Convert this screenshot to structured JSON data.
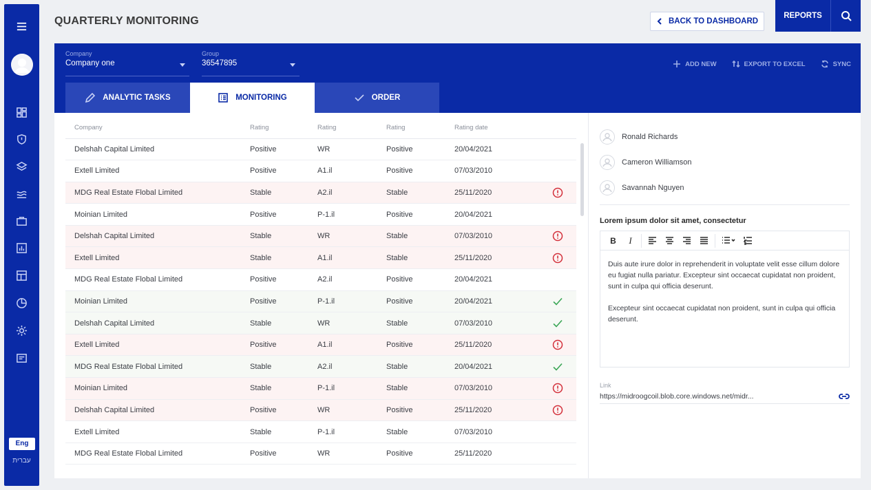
{
  "header": {
    "title": "QUARTERLY MONITORING",
    "back_label": "BACK TO DASHBOARD",
    "reports_label": "REPORTS"
  },
  "sidebar": {
    "icons": [
      "menu-icon",
      "dashboard-icon",
      "shield-icon",
      "layers-icon",
      "waves-icon",
      "briefcase-icon",
      "bar-chart-icon",
      "layout-icon",
      "pie-chart-icon",
      "settings-icon",
      "card-icon"
    ],
    "lang_primary": "Eng",
    "lang_secondary": "עברית"
  },
  "filters": {
    "company_label": "Company",
    "company_value": "Company one",
    "group_label": "Group",
    "group_value": "36547895"
  },
  "actions": {
    "add_new": "ADD NEW",
    "export": "EXPORT TO EXCEL",
    "sync": "SYNC"
  },
  "tabs": [
    {
      "label": "ANALYTIC TASKS"
    },
    {
      "label": "MONITORING"
    },
    {
      "label": "ORDER"
    }
  ],
  "table": {
    "columns": [
      "Company",
      "Rating",
      "Rating",
      "Rating",
      "Rating date"
    ],
    "rows": [
      {
        "company": "Delshah Capital Limited",
        "r1": "Positive",
        "r2": "WR",
        "r3": "Positive",
        "date": "20/04/2021",
        "status": "none"
      },
      {
        "company": "Extell Limited",
        "r1": "Positive",
        "r2": "A1.il",
        "r3": "Positive",
        "date": "07/03/2010",
        "status": "none"
      },
      {
        "company": "MDG Real Estate Flobal Limited",
        "r1": "Stable",
        "r2": "A2.il",
        "r3": "Stable",
        "date": "25/11/2020",
        "status": "warning"
      },
      {
        "company": "Moinian Limited",
        "r1": "Positive",
        "r2": "P-1.il",
        "r3": "Positive",
        "date": "20/04/2021",
        "status": "none"
      },
      {
        "company": "Delshah Capital Limited",
        "r1": "Stable",
        "r2": "WR",
        "r3": "Stable",
        "date": "07/03/2010",
        "status": "warning"
      },
      {
        "company": "Extell Limited",
        "r1": "Stable",
        "r2": "A1.il",
        "r3": "Stable",
        "date": "25/11/2020",
        "status": "warning"
      },
      {
        "company": "MDG Real Estate Flobal Limited",
        "r1": "Positive",
        "r2": "A2.il",
        "r3": "Positive",
        "date": "20/04/2021",
        "status": "none"
      },
      {
        "company": "Moinian Limited",
        "r1": "Positive",
        "r2": "P-1.il",
        "r3": "Positive",
        "date": "20/04/2021",
        "status": "ok"
      },
      {
        "company": "Delshah Capital Limited",
        "r1": "Stable",
        "r2": "WR",
        "r3": "Stable",
        "date": "07/03/2010",
        "status": "ok"
      },
      {
        "company": "Extell Limited",
        "r1": "Positive",
        "r2": "A1.il",
        "r3": "Positive",
        "date": "25/11/2020",
        "status": "warning"
      },
      {
        "company": "MDG Real Estate Flobal Limited",
        "r1": "Stable",
        "r2": "A2.il",
        "r3": "Stable",
        "date": "20/04/2021",
        "status": "ok"
      },
      {
        "company": "Moinian Limited",
        "r1": "Stable",
        "r2": "P-1.il",
        "r3": "Stable",
        "date": "07/03/2010",
        "status": "warning"
      },
      {
        "company": "Delshah Capital Limited",
        "r1": "Positive",
        "r2": "WR",
        "r3": "Positive",
        "date": "25/11/2020",
        "status": "warning"
      },
      {
        "company": "Extell Limited",
        "r1": "Stable",
        "r2": "P-1.il",
        "r3": "Stable",
        "date": "07/03/2010",
        "status": "none"
      },
      {
        "company": "MDG Real Estate Flobal Limited",
        "r1": "Positive",
        "r2": "WR",
        "r3": "Positive",
        "date": "25/11/2020",
        "status": "none"
      }
    ]
  },
  "people": [
    "Ronald Richards",
    "Cameron Williamson",
    "Savannah Nguyen"
  ],
  "note": {
    "title": "Lorem ipsum dolor sit amet, consectetur",
    "paragraphs": [
      "Duis aute irure dolor in reprehenderit in voluptate velit esse cillum dolore eu fugiat nulla pariatur. Excepteur sint occaecat cupidatat non proident, sunt in culpa qui officia deserunt.",
      "Excepteur sint occaecat cupidatat non proident, sunt in culpa qui officia deserunt."
    ]
  },
  "link": {
    "label": "Link",
    "value": "https://midroogcoil.blob.core.windows.net/midr..."
  },
  "colors": {
    "brand": "#0a2aa6",
    "warning": "#d32f3a",
    "ok": "#3aa655"
  }
}
